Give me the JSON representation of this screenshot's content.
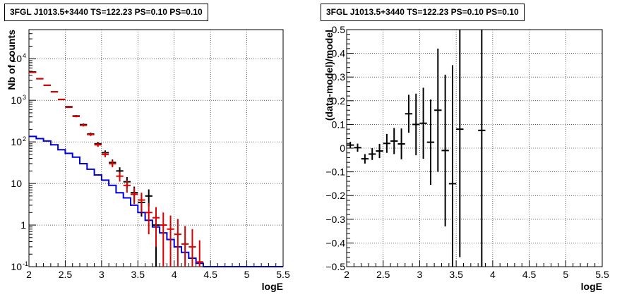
{
  "chart_data": [
    {
      "type": "line",
      "title": "3FGL J1013.5+3440 TS=122.23 PS=0.10 PS=0.10",
      "xlabel": "logE",
      "ylabel": "Nb of counts",
      "xlim": [
        2,
        5.5
      ],
      "ylim": [
        0.1,
        50000
      ],
      "yscale": "log",
      "grid": true,
      "xticks": [
        "2",
        "2.5",
        "3",
        "3.5",
        "4",
        "4.5",
        "5",
        "5.5"
      ],
      "yticks": [
        "10",
        "1",
        "10"
      ],
      "ytick_exponents": [
        "-1",
        "",
        "",
        "2",
        "3",
        "4"
      ],
      "colors": {
        "data": "#000000",
        "model_total": "#dd0000",
        "model_source": "#0000dd"
      },
      "series": [
        {
          "kind": "errorbar",
          "color": "#000000",
          "x": [
            2.05,
            2.15,
            2.25,
            2.35,
            2.45,
            2.55,
            2.65,
            2.75,
            2.85,
            2.95,
            3.05,
            3.15,
            3.25,
            3.35,
            3.45,
            3.55,
            3.65,
            3.75
          ],
          "y": [
            4800,
            3300,
            2300,
            1600,
            1050,
            700,
            420,
            260,
            155,
            90,
            55,
            32,
            20,
            11,
            6,
            3.5,
            5,
            1
          ],
          "yerr": [
            70,
            58,
            48,
            40,
            32,
            26,
            20,
            16,
            12,
            9.5,
            7.4,
            5.7,
            4.5,
            3.3,
            2.4,
            1.9,
            2.2,
            0.9
          ]
        },
        {
          "kind": "errorbar",
          "color": "#dd0000",
          "x": [
            2.05,
            2.15,
            2.25,
            2.35,
            2.45,
            2.55,
            2.65,
            2.75,
            2.85,
            2.95,
            3.05,
            3.15,
            3.25,
            3.35,
            3.45,
            3.55,
            3.65,
            3.75,
            3.85,
            3.95,
            4.05,
            4.15,
            4.25,
            4.35
          ],
          "y": [
            4700,
            3300,
            2300,
            1600,
            1050,
            680,
            410,
            250,
            150,
            85,
            50,
            30,
            15,
            9,
            5.5,
            4,
            2,
            1.5,
            1,
            0.8,
            0.6,
            0.35,
            0.3,
            0.13
          ],
          "yerr": [
            70,
            58,
            48,
            40,
            32,
            26,
            20,
            16,
            12,
            9.2,
            7.1,
            5.5,
            3.9,
            3.0,
            2.3,
            2.0,
            1.4,
            1.2,
            1.0,
            0.9,
            0.8,
            0.6,
            0.5,
            0.3
          ]
        },
        {
          "kind": "step",
          "color": "#0000dd",
          "x_edges": [
            2.0,
            2.1,
            2.2,
            2.3,
            2.4,
            2.5,
            2.6,
            2.7,
            2.8,
            2.9,
            3.0,
            3.1,
            3.2,
            3.3,
            3.4,
            3.5,
            3.6,
            3.7,
            3.8,
            3.9,
            4.0,
            4.1,
            4.2,
            4.3,
            4.4,
            5.5
          ],
          "y": [
            135,
            120,
            105,
            85,
            65,
            53,
            43,
            30,
            22,
            16,
            12,
            9,
            6,
            4.5,
            3,
            2,
            1.3,
            0.9,
            0.65,
            0.45,
            0.3,
            0.22,
            0.16,
            0.12,
            0.1
          ]
        }
      ]
    },
    {
      "type": "scatter",
      "title": "3FGL J1013.5+3440 TS=122.23 PS=0.10 PS=0.10",
      "xlabel": "logE",
      "ylabel": "(data-model)/model",
      "xlim": [
        2,
        5.5
      ],
      "ylim": [
        -0.5,
        0.5
      ],
      "grid": true,
      "xticks": [
        "2",
        "2.5",
        "3",
        "3.5",
        "4",
        "4.5",
        "5",
        "5.5"
      ],
      "yticks": [
        "-0.5",
        "-0.4",
        "-0.3",
        "-0.2",
        "-0.1",
        "0",
        "0.1",
        "0.2",
        "0.3",
        "0.4",
        "0.5"
      ],
      "series": [
        {
          "kind": "errorbar",
          "color": "#000000",
          "x": [
            2.05,
            2.15,
            2.25,
            2.35,
            2.45,
            2.55,
            2.65,
            2.75,
            2.85,
            2.95,
            3.05,
            3.15,
            3.25,
            3.35,
            3.45,
            3.55,
            3.85
          ],
          "y": [
            0.013,
            0.002,
            -0.045,
            -0.025,
            -0.012,
            0.02,
            0.03,
            0.018,
            0.145,
            0.1,
            0.105,
            0.025,
            0.16,
            -0.01,
            -0.15,
            0.08,
            0.075
          ],
          "yerr": [
            0.014,
            0.017,
            0.02,
            0.025,
            0.03,
            0.04,
            0.055,
            0.065,
            0.08,
            0.13,
            0.15,
            0.18,
            0.26,
            0.32,
            0.5,
            0.54,
            0.9
          ]
        }
      ]
    }
  ]
}
